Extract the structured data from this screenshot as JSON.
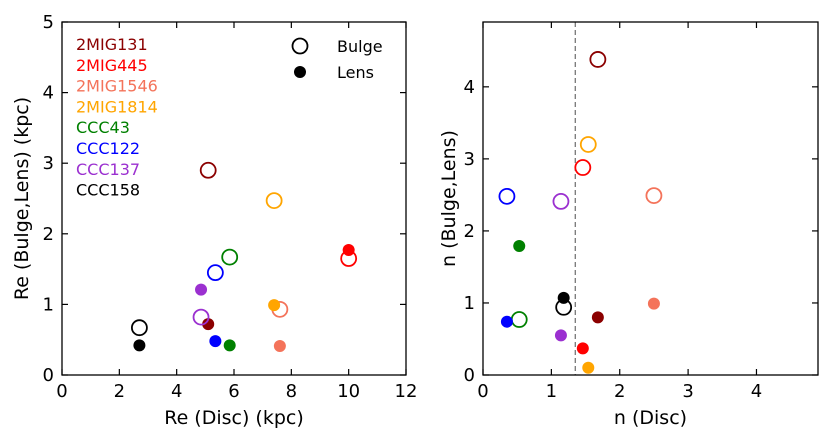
{
  "chart_data": [
    {
      "type": "scatter",
      "xlabel": "Re (Disc) (kpc)",
      "ylabel": "Re (Bulge,Lens) (kpc)",
      "xlim": [
        0,
        12
      ],
      "ylim": [
        0,
        5
      ],
      "xticks": [
        0,
        2,
        4,
        6,
        8,
        10,
        12
      ],
      "yticks": [
        0,
        1,
        2,
        3,
        4,
        5
      ],
      "legend_markers": [
        {
          "label": "Bulge",
          "style": "open"
        },
        {
          "label": "Lens",
          "style": "filled"
        }
      ],
      "galaxy_legend": [
        {
          "name": "2MIG131",
          "color": "#8b0000"
        },
        {
          "name": "2MIG445",
          "color": "#ff0000"
        },
        {
          "name": "2MIG1546",
          "color": "#f4735a"
        },
        {
          "name": "2MIG1814",
          "color": "#ffa500"
        },
        {
          "name": "CCC43",
          "color": "#008000"
        },
        {
          "name": "CCC122",
          "color": "#0000ff"
        },
        {
          "name": "CCC137",
          "color": "#9b30d0"
        },
        {
          "name": "CCC158",
          "color": "#000000"
        }
      ],
      "points": [
        {
          "galaxy": "2MIG131",
          "kind": "bulge",
          "x": 5.1,
          "y": 2.9
        },
        {
          "galaxy": "2MIG131",
          "kind": "lens",
          "x": 5.1,
          "y": 0.72
        },
        {
          "galaxy": "2MIG445",
          "kind": "bulge",
          "x": 10.0,
          "y": 1.65
        },
        {
          "galaxy": "2MIG445",
          "kind": "lens",
          "x": 10.0,
          "y": 1.77
        },
        {
          "galaxy": "2MIG1546",
          "kind": "bulge",
          "x": 7.6,
          "y": 0.93
        },
        {
          "galaxy": "2MIG1546",
          "kind": "lens",
          "x": 7.6,
          "y": 0.41
        },
        {
          "galaxy": "2MIG1814",
          "kind": "bulge",
          "x": 7.4,
          "y": 2.47
        },
        {
          "galaxy": "2MIG1814",
          "kind": "lens",
          "x": 7.4,
          "y": 0.99
        },
        {
          "galaxy": "CCC43",
          "kind": "bulge",
          "x": 5.85,
          "y": 1.67
        },
        {
          "galaxy": "CCC43",
          "kind": "lens",
          "x": 5.85,
          "y": 0.42
        },
        {
          "galaxy": "CCC122",
          "kind": "bulge",
          "x": 5.35,
          "y": 1.45
        },
        {
          "galaxy": "CCC122",
          "kind": "lens",
          "x": 5.35,
          "y": 0.48
        },
        {
          "galaxy": "CCC137",
          "kind": "bulge",
          "x": 4.85,
          "y": 0.82
        },
        {
          "galaxy": "CCC137",
          "kind": "lens",
          "x": 4.85,
          "y": 1.21
        },
        {
          "galaxy": "CCC158",
          "kind": "bulge",
          "x": 2.7,
          "y": 0.67
        },
        {
          "galaxy": "CCC158",
          "kind": "lens",
          "x": 2.7,
          "y": 0.42
        }
      ]
    },
    {
      "type": "scatter",
      "xlabel": "n (Disc)",
      "ylabel": "n (Bulge,Lens)",
      "xlim": [
        0,
        4.9
      ],
      "ylim": [
        0,
        4.9
      ],
      "xticks": [
        0,
        1,
        2,
        3,
        4
      ],
      "yticks": [
        0,
        1,
        2,
        3,
        4
      ],
      "reference_line_x": 1.35,
      "points": [
        {
          "galaxy": "2MIG131",
          "kind": "bulge",
          "x": 1.68,
          "y": 4.38
        },
        {
          "galaxy": "2MIG131",
          "kind": "lens",
          "x": 1.68,
          "y": 0.8
        },
        {
          "galaxy": "2MIG445",
          "kind": "bulge",
          "x": 1.46,
          "y": 2.88
        },
        {
          "galaxy": "2MIG445",
          "kind": "lens",
          "x": 1.46,
          "y": 0.37
        },
        {
          "galaxy": "2MIG1546",
          "kind": "bulge",
          "x": 2.5,
          "y": 2.49
        },
        {
          "galaxy": "2MIG1546",
          "kind": "lens",
          "x": 2.5,
          "y": 0.99
        },
        {
          "galaxy": "2MIG1814",
          "kind": "bulge",
          "x": 1.54,
          "y": 3.2
        },
        {
          "galaxy": "2MIG1814",
          "kind": "lens",
          "x": 1.54,
          "y": 0.1
        },
        {
          "galaxy": "CCC43",
          "kind": "bulge",
          "x": 0.53,
          "y": 0.77
        },
        {
          "galaxy": "CCC43",
          "kind": "lens",
          "x": 0.53,
          "y": 1.79
        },
        {
          "galaxy": "CCC122",
          "kind": "bulge",
          "x": 0.35,
          "y": 2.48
        },
        {
          "galaxy": "CCC122",
          "kind": "lens",
          "x": 0.35,
          "y": 0.74
        },
        {
          "galaxy": "CCC137",
          "kind": "bulge",
          "x": 1.14,
          "y": 2.41
        },
        {
          "galaxy": "CCC137",
          "kind": "lens",
          "x": 1.14,
          "y": 0.55
        },
        {
          "galaxy": "CCC158",
          "kind": "bulge",
          "x": 1.18,
          "y": 0.94
        },
        {
          "galaxy": "CCC158",
          "kind": "lens",
          "x": 1.18,
          "y": 1.07
        }
      ]
    }
  ]
}
